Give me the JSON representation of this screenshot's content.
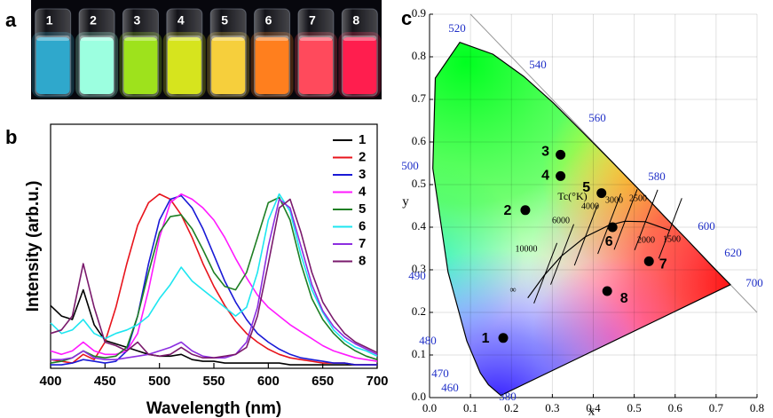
{
  "photo": {
    "panel": "a",
    "vials": [
      "1",
      "2",
      "3",
      "4",
      "5",
      "6",
      "7",
      "8"
    ]
  },
  "chart_data": [
    {
      "type": "line",
      "panel": "b",
      "xlabel": "Wavelength (nm)",
      "ylabel": "Intensity (arb.u.)",
      "x": [
        400,
        410,
        420,
        430,
        440,
        450,
        460,
        470,
        480,
        490,
        500,
        510,
        520,
        530,
        540,
        550,
        560,
        570,
        580,
        590,
        600,
        610,
        620,
        630,
        640,
        650,
        660,
        670,
        680,
        690,
        700
      ],
      "xlim": [
        400,
        700
      ],
      "xticks": [
        400,
        450,
        500,
        550,
        600,
        650,
        700
      ],
      "ylim": [
        0,
        1.4
      ],
      "legend": "upper right",
      "grid": false,
      "series": [
        {
          "name": "1",
          "color": "#000000",
          "values": [
            0.36,
            0.3,
            0.28,
            0.45,
            0.25,
            0.16,
            0.14,
            0.12,
            0.1,
            0.08,
            0.07,
            0.07,
            0.08,
            0.05,
            0.04,
            0.04,
            0.03,
            0.03,
            0.03,
            0.03,
            0.03,
            0.03,
            0.02,
            0.02,
            0.02,
            0.02,
            0.02,
            0.02,
            0.02,
            0.02,
            0.02
          ]
        },
        {
          "name": "2",
          "color": "#e8141c",
          "values": [
            0.05,
            0.04,
            0.03,
            0.08,
            0.05,
            0.15,
            0.35,
            0.6,
            0.82,
            0.95,
            1.0,
            0.97,
            0.88,
            0.75,
            0.6,
            0.47,
            0.36,
            0.27,
            0.2,
            0.15,
            0.11,
            0.08,
            0.06,
            0.05,
            0.04,
            0.03,
            0.03,
            0.03,
            0.02,
            0.02,
            0.02
          ]
        },
        {
          "name": "3",
          "color": "#1a1ad6",
          "values": [
            0.02,
            0.02,
            0.03,
            0.05,
            0.04,
            0.03,
            0.04,
            0.1,
            0.3,
            0.6,
            0.85,
            0.97,
            0.99,
            0.92,
            0.8,
            0.65,
            0.5,
            0.38,
            0.28,
            0.2,
            0.15,
            0.11,
            0.08,
            0.06,
            0.05,
            0.04,
            0.03,
            0.03,
            0.02,
            0.02,
            0.02
          ]
        },
        {
          "name": "4",
          "color": "#ff1aff",
          "values": [
            0.1,
            0.08,
            0.1,
            0.15,
            0.1,
            0.08,
            0.08,
            0.1,
            0.2,
            0.45,
            0.75,
            0.95,
            1.0,
            0.97,
            0.92,
            0.85,
            0.75,
            0.63,
            0.52,
            0.42,
            0.35,
            0.3,
            0.25,
            0.21,
            0.17,
            0.13,
            0.1,
            0.08,
            0.06,
            0.05,
            0.04
          ]
        },
        {
          "name": "5",
          "color": "#1f7f24",
          "values": [
            0.03,
            0.04,
            0.06,
            0.1,
            0.07,
            0.06,
            0.07,
            0.12,
            0.3,
            0.55,
            0.78,
            0.87,
            0.88,
            0.8,
            0.68,
            0.55,
            0.47,
            0.45,
            0.55,
            0.75,
            0.95,
            0.98,
            0.85,
            0.6,
            0.4,
            0.28,
            0.2,
            0.14,
            0.1,
            0.07,
            0.05
          ]
        },
        {
          "name": "6",
          "color": "#1ee6f0",
          "values": [
            0.26,
            0.2,
            0.22,
            0.28,
            0.2,
            0.17,
            0.2,
            0.22,
            0.25,
            0.3,
            0.4,
            0.48,
            0.58,
            0.5,
            0.45,
            0.4,
            0.35,
            0.3,
            0.35,
            0.55,
            0.85,
            1.0,
            0.9,
            0.65,
            0.45,
            0.32,
            0.22,
            0.16,
            0.12,
            0.1,
            0.07
          ]
        },
        {
          "name": "7",
          "color": "#8c2ee0",
          "values": [
            0.05,
            0.05,
            0.06,
            0.1,
            0.06,
            0.05,
            0.05,
            0.06,
            0.07,
            0.08,
            0.1,
            0.12,
            0.15,
            0.1,
            0.07,
            0.06,
            0.06,
            0.08,
            0.15,
            0.35,
            0.7,
            0.97,
            0.92,
            0.7,
            0.48,
            0.33,
            0.24,
            0.18,
            0.14,
            0.11,
            0.08
          ]
        },
        {
          "name": "8",
          "color": "#7a1a6c",
          "values": [
            0.2,
            0.22,
            0.3,
            0.6,
            0.35,
            0.15,
            0.13,
            0.1,
            0.15,
            0.08,
            0.07,
            0.08,
            0.12,
            0.08,
            0.06,
            0.06,
            0.07,
            0.08,
            0.12,
            0.3,
            0.6,
            0.92,
            0.97,
            0.78,
            0.55,
            0.38,
            0.28,
            0.2,
            0.15,
            0.12,
            0.09
          ]
        }
      ]
    },
    {
      "type": "scatter",
      "panel": "c",
      "xlabel": "x",
      "ylabel": "y",
      "x": [
        0.18,
        0.234,
        0.32,
        0.32,
        0.42,
        0.447,
        0.536,
        0.434
      ],
      "values": [
        0.14,
        0.44,
        0.57,
        0.52,
        0.48,
        0.4,
        0.32,
        0.25
      ],
      "point_labels": [
        "1",
        "2",
        "3",
        "4",
        "5",
        "6",
        "7",
        "8"
      ],
      "color": "#000000",
      "grid": true,
      "xlim": [
        0,
        0.8
      ],
      "ylim": [
        0,
        0.9
      ],
      "xticks": [
        {
          "value": 0,
          "label": "0.0"
        },
        0.1,
        0.2,
        0.3,
        0.4,
        0.5,
        0.6,
        0.7,
        0.8
      ],
      "yticks": [
        {
          "value": 0,
          "label": "0.0"
        },
        0.1,
        0.2,
        0.3,
        0.4,
        0.5,
        0.6,
        0.7,
        0.8,
        0.9
      ],
      "wavelength_labels": [
        "380",
        "460",
        "470",
        "480",
        "490",
        "500",
        "520",
        "540",
        "560",
        "580",
        "600",
        "620",
        "700"
      ],
      "cct_labels": [
        "10000",
        "6000",
        "4000",
        "3000",
        "2500",
        "2000",
        "1500",
        "∞"
      ],
      "cct_title": "Tc(°K)"
    }
  ]
}
